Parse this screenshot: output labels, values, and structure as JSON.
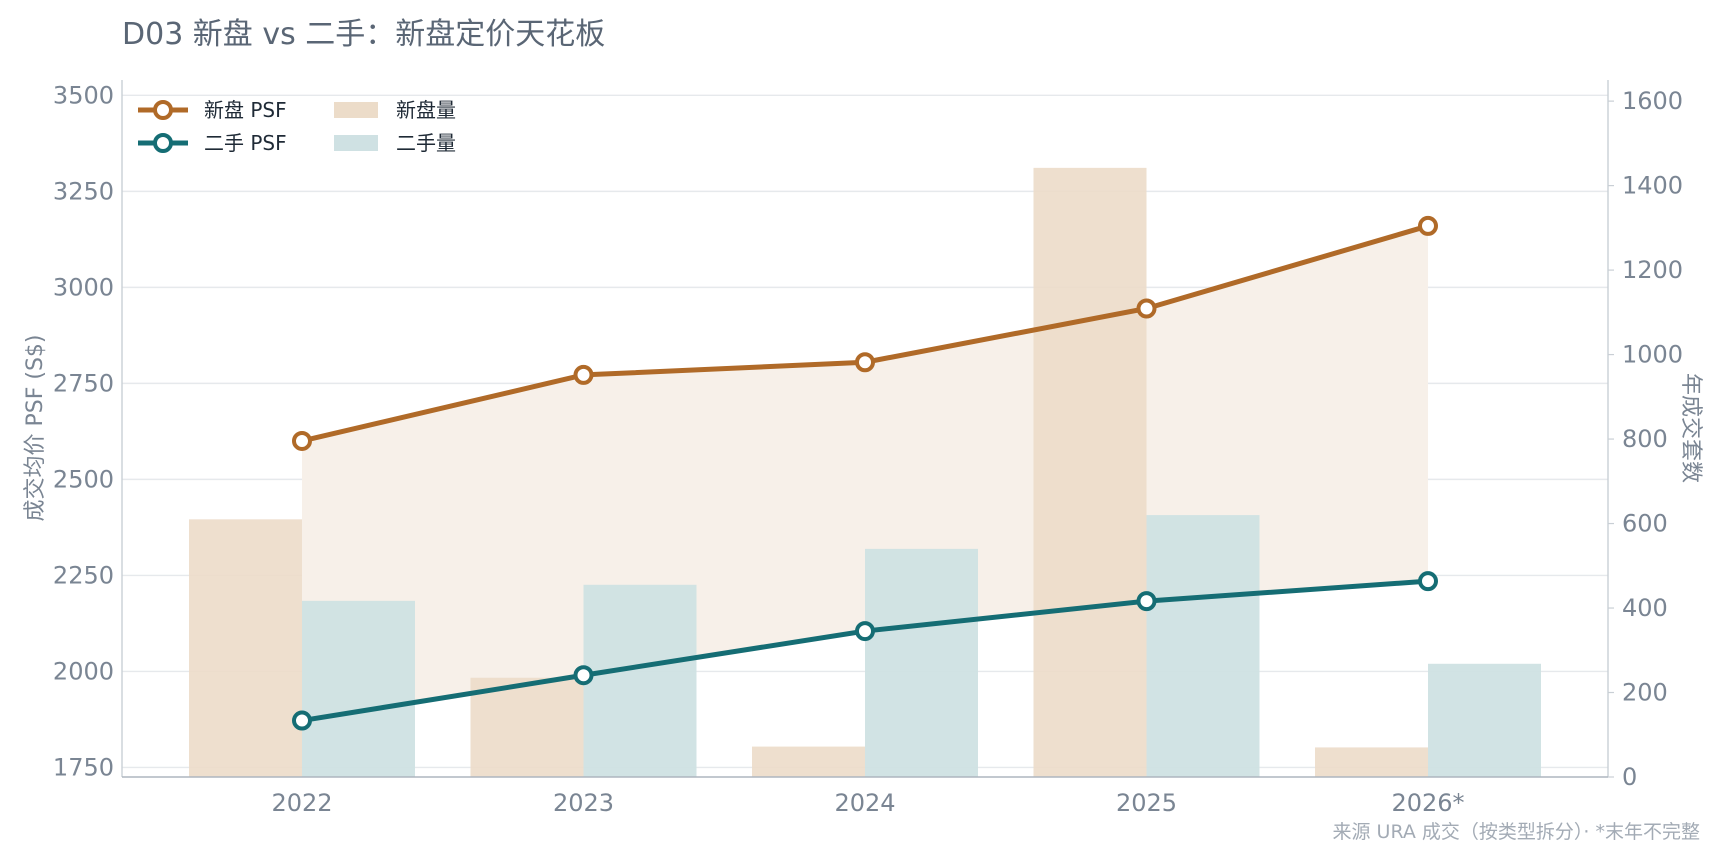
{
  "chart_data": {
    "type": "bar+line",
    "title": "D03 新盘 vs 二手：新盘定价天花板",
    "categories": [
      "2022",
      "2023",
      "2024",
      "2025",
      "2026*"
    ],
    "y_left": {
      "label": "成交均价 PSF (S$)",
      "ylim": [
        1725,
        3540
      ],
      "ticks": [
        1750,
        2000,
        2250,
        2500,
        2750,
        3000,
        3250,
        3500
      ]
    },
    "y_right": {
      "label": "年成交套数",
      "ylim": [
        0,
        1650
      ],
      "ticks": [
        0,
        200,
        400,
        600,
        800,
        1000,
        1200,
        1400,
        1600
      ]
    },
    "bar_series": [
      {
        "name": "新盘量",
        "axis": "right",
        "values": [
          610,
          235,
          72,
          1442,
          70
        ],
        "color": "#ecdcc9"
      },
      {
        "name": "二手量",
        "axis": "right",
        "values": [
          417,
          455,
          540,
          620,
          268
        ],
        "color": "#cfe1e3"
      }
    ],
    "line_series": [
      {
        "name": "新盘 PSF",
        "axis": "left",
        "values": [
          2600,
          2772,
          2805,
          2945,
          3160
        ],
        "color": "#b06a28"
      },
      {
        "name": "二手 PSF",
        "axis": "left",
        "values": [
          1872,
          1990,
          2105,
          2183,
          2235
        ],
        "color": "#156d74"
      }
    ],
    "band_fill": "#f7f0e9",
    "grid": true,
    "legend_position": "top-left",
    "footnote": "来源 URA 成交（按类型拆分）· *末年不完整"
  }
}
